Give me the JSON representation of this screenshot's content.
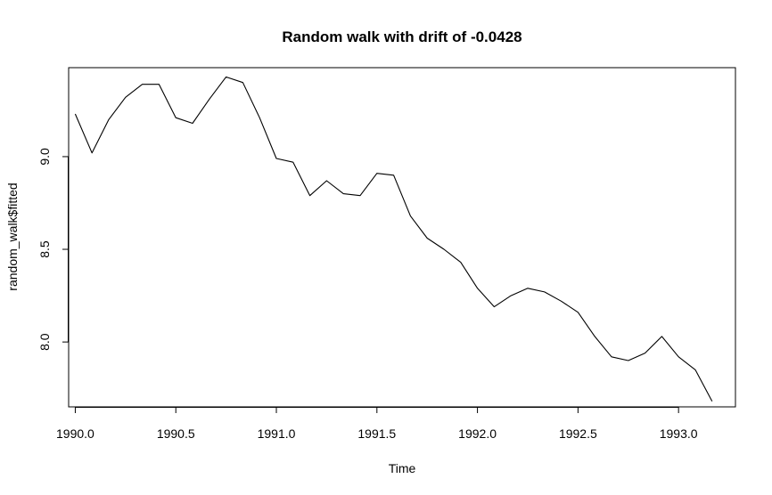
{
  "chart_data": {
    "type": "line",
    "title": "Random walk with drift of -0.0428",
    "xlabel": "Time",
    "ylabel": "random_walk$fitted",
    "xlim": [
      1989.967,
      1993.283
    ],
    "ylim": [
      7.65,
      9.48
    ],
    "xticks": [
      1990.0,
      1990.5,
      1991.0,
      1991.5,
      1992.0,
      1992.5,
      1993.0
    ],
    "xtick_labels": [
      "1990.0",
      "1990.5",
      "1991.0",
      "1991.5",
      "1992.0",
      "1992.5",
      "1993.0"
    ],
    "yticks": [
      8.0,
      8.5,
      9.0
    ],
    "ytick_labels": [
      "8.0",
      "8.5",
      "9.0"
    ],
    "grid": false,
    "series": [
      {
        "x": [
          1990.0,
          1990.0833,
          1990.1667,
          1990.25,
          1990.3333,
          1990.4167,
          1990.5,
          1990.5833,
          1990.6667,
          1990.75,
          1990.8333,
          1990.9167,
          1991.0,
          1991.0833,
          1991.1667,
          1991.25,
          1991.3333,
          1991.4167,
          1991.5,
          1991.5833,
          1991.6667,
          1991.75,
          1991.8333,
          1991.9167,
          1992.0,
          1992.0833,
          1992.1667,
          1992.25,
          1992.3333,
          1992.4167,
          1992.5,
          1992.5833,
          1992.6667,
          1992.75,
          1992.8333,
          1992.9167,
          1993.0,
          1993.0833,
          1993.1667
        ],
        "values": [
          9.23,
          9.02,
          9.2,
          9.32,
          9.39,
          9.39,
          9.21,
          9.18,
          9.31,
          9.43,
          9.4,
          9.21,
          8.99,
          8.97,
          8.79,
          8.87,
          8.8,
          8.79,
          8.91,
          8.9,
          8.68,
          8.56,
          8.5,
          8.43,
          8.29,
          8.19,
          8.25,
          8.29,
          8.27,
          8.22,
          8.16,
          8.03,
          7.92,
          7.9,
          7.94,
          8.03,
          7.92,
          7.85,
          7.68
        ]
      }
    ]
  }
}
